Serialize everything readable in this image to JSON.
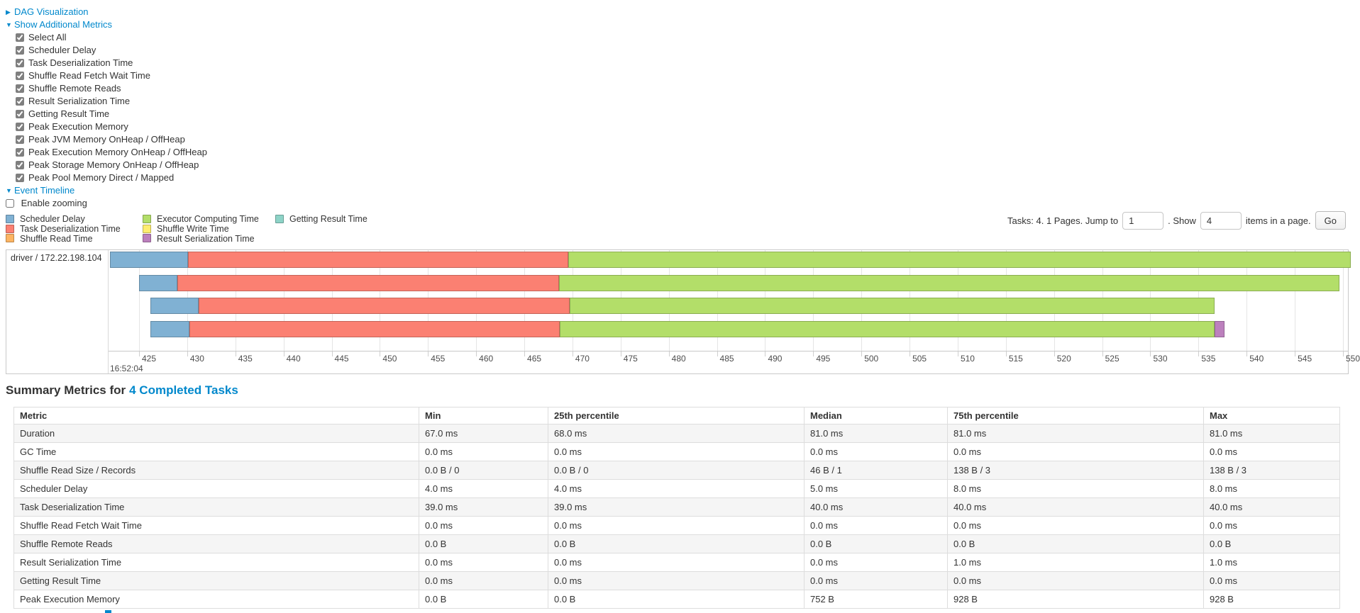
{
  "toggles": {
    "dag": {
      "label": "DAG Visualization",
      "state": "collapsed"
    },
    "additional_metrics": {
      "label": "Show Additional Metrics",
      "state": "expanded"
    },
    "event_timeline": {
      "label": "Event Timeline",
      "state": "expanded"
    }
  },
  "metric_checkboxes": [
    {
      "label": "Select All",
      "checked": true
    },
    {
      "label": "Scheduler Delay",
      "checked": true
    },
    {
      "label": "Task Deserialization Time",
      "checked": true
    },
    {
      "label": "Shuffle Read Fetch Wait Time",
      "checked": true
    },
    {
      "label": "Shuffle Remote Reads",
      "checked": true
    },
    {
      "label": "Result Serialization Time",
      "checked": true
    },
    {
      "label": "Getting Result Time",
      "checked": true
    },
    {
      "label": "Peak Execution Memory",
      "checked": true
    },
    {
      "label": "Peak JVM Memory OnHeap / OffHeap",
      "checked": true
    },
    {
      "label": "Peak Execution Memory OnHeap / OffHeap",
      "checked": true
    },
    {
      "label": "Peak Storage Memory OnHeap / OffHeap",
      "checked": true
    },
    {
      "label": "Peak Pool Memory Direct / Mapped",
      "checked": true
    }
  ],
  "enable_zooming": {
    "label": "Enable zooming",
    "checked": false
  },
  "legend": [
    {
      "label": "Scheduler Delay",
      "color": "#80B1D3"
    },
    {
      "label": "Task Deserialization Time",
      "color": "#FB8072"
    },
    {
      "label": "Shuffle Read Time",
      "color": "#FDB462"
    },
    {
      "label": "Executor Computing Time",
      "color": "#B3DE69"
    },
    {
      "label": "Shuffle Write Time",
      "color": "#FFED6F"
    },
    {
      "label": "Result Serialization Time",
      "color": "#BC80BD"
    },
    {
      "label": "Getting Result Time",
      "color": "#8DD3C7"
    }
  ],
  "pagination": {
    "prefix": "Tasks: 4. 1 Pages. Jump to",
    "jump_value": "1",
    "mid": ". Show",
    "show_value": "4",
    "suffix": "items in a page.",
    "go_label": "Go"
  },
  "colors": {
    "link": "#0088cc"
  },
  "chart_data": {
    "type": "timeline",
    "title": "Event Timeline",
    "row_label": "driver / 172.22.198.104",
    "x_axis": {
      "major_label": "16:52:04",
      "tick_start_ms": 425,
      "tick_end_ms": 550,
      "tick_step_ms": 5,
      "unit": "milliseconds within 16:52:04"
    },
    "segment_colors": {
      "scheduler_delay": "#80B1D3",
      "task_deserialization": "#FB8072",
      "shuffle_read": "#FDB462",
      "executor_computing": "#B3DE69",
      "shuffle_write": "#FFED6F",
      "result_serialization": "#BC80BD",
      "getting_result": "#8DD3C7"
    },
    "tasks": [
      {
        "start_ms": 422.0,
        "segments": [
          [
            "scheduler_delay",
            8.1
          ],
          [
            "task_deserialization",
            39.5
          ],
          [
            "executor_computing",
            81.2
          ]
        ]
      },
      {
        "start_ms": 425.0,
        "segments": [
          [
            "scheduler_delay",
            4.0
          ],
          [
            "task_deserialization",
            39.6
          ],
          [
            "executor_computing",
            81.0
          ]
        ]
      },
      {
        "start_ms": 426.2,
        "segments": [
          [
            "scheduler_delay",
            5.0
          ],
          [
            "task_deserialization",
            38.5
          ],
          [
            "executor_computing",
            67.0
          ]
        ]
      },
      {
        "start_ms": 426.2,
        "segments": [
          [
            "scheduler_delay",
            4.0
          ],
          [
            "task_deserialization",
            38.5
          ],
          [
            "executor_computing",
            68.0
          ],
          [
            "result_serialization",
            1.0
          ]
        ]
      }
    ]
  },
  "summary_table": {
    "heading_prefix": "Summary Metrics for",
    "heading_link": "4 Completed Tasks",
    "columns": [
      "Metric",
      "Min",
      "25th percentile",
      "Median",
      "75th percentile",
      "Max"
    ],
    "rows": [
      [
        "Duration",
        "67.0 ms",
        "68.0 ms",
        "81.0 ms",
        "81.0 ms",
        "81.0 ms"
      ],
      [
        "GC Time",
        "0.0 ms",
        "0.0 ms",
        "0.0 ms",
        "0.0 ms",
        "0.0 ms"
      ],
      [
        "Shuffle Read Size / Records",
        "0.0 B / 0",
        "0.0 B / 0",
        "46 B / 1",
        "138 B / 3",
        "138 B / 3"
      ],
      [
        "Scheduler Delay",
        "4.0 ms",
        "4.0 ms",
        "5.0 ms",
        "8.0 ms",
        "8.0 ms"
      ],
      [
        "Task Deserialization Time",
        "39.0 ms",
        "39.0 ms",
        "40.0 ms",
        "40.0 ms",
        "40.0 ms"
      ],
      [
        "Shuffle Read Fetch Wait Time",
        "0.0 ms",
        "0.0 ms",
        "0.0 ms",
        "0.0 ms",
        "0.0 ms"
      ],
      [
        "Shuffle Remote Reads",
        "0.0 B",
        "0.0 B",
        "0.0 B",
        "0.0 B",
        "0.0 B"
      ],
      [
        "Result Serialization Time",
        "0.0 ms",
        "0.0 ms",
        "0.0 ms",
        "1.0 ms",
        "1.0 ms"
      ],
      [
        "Getting Result Time",
        "0.0 ms",
        "0.0 ms",
        "0.0 ms",
        "0.0 ms",
        "0.0 ms"
      ],
      [
        "Peak Execution Memory",
        "0.0 B",
        "0.0 B",
        "752 B",
        "928 B",
        "928 B"
      ]
    ]
  }
}
